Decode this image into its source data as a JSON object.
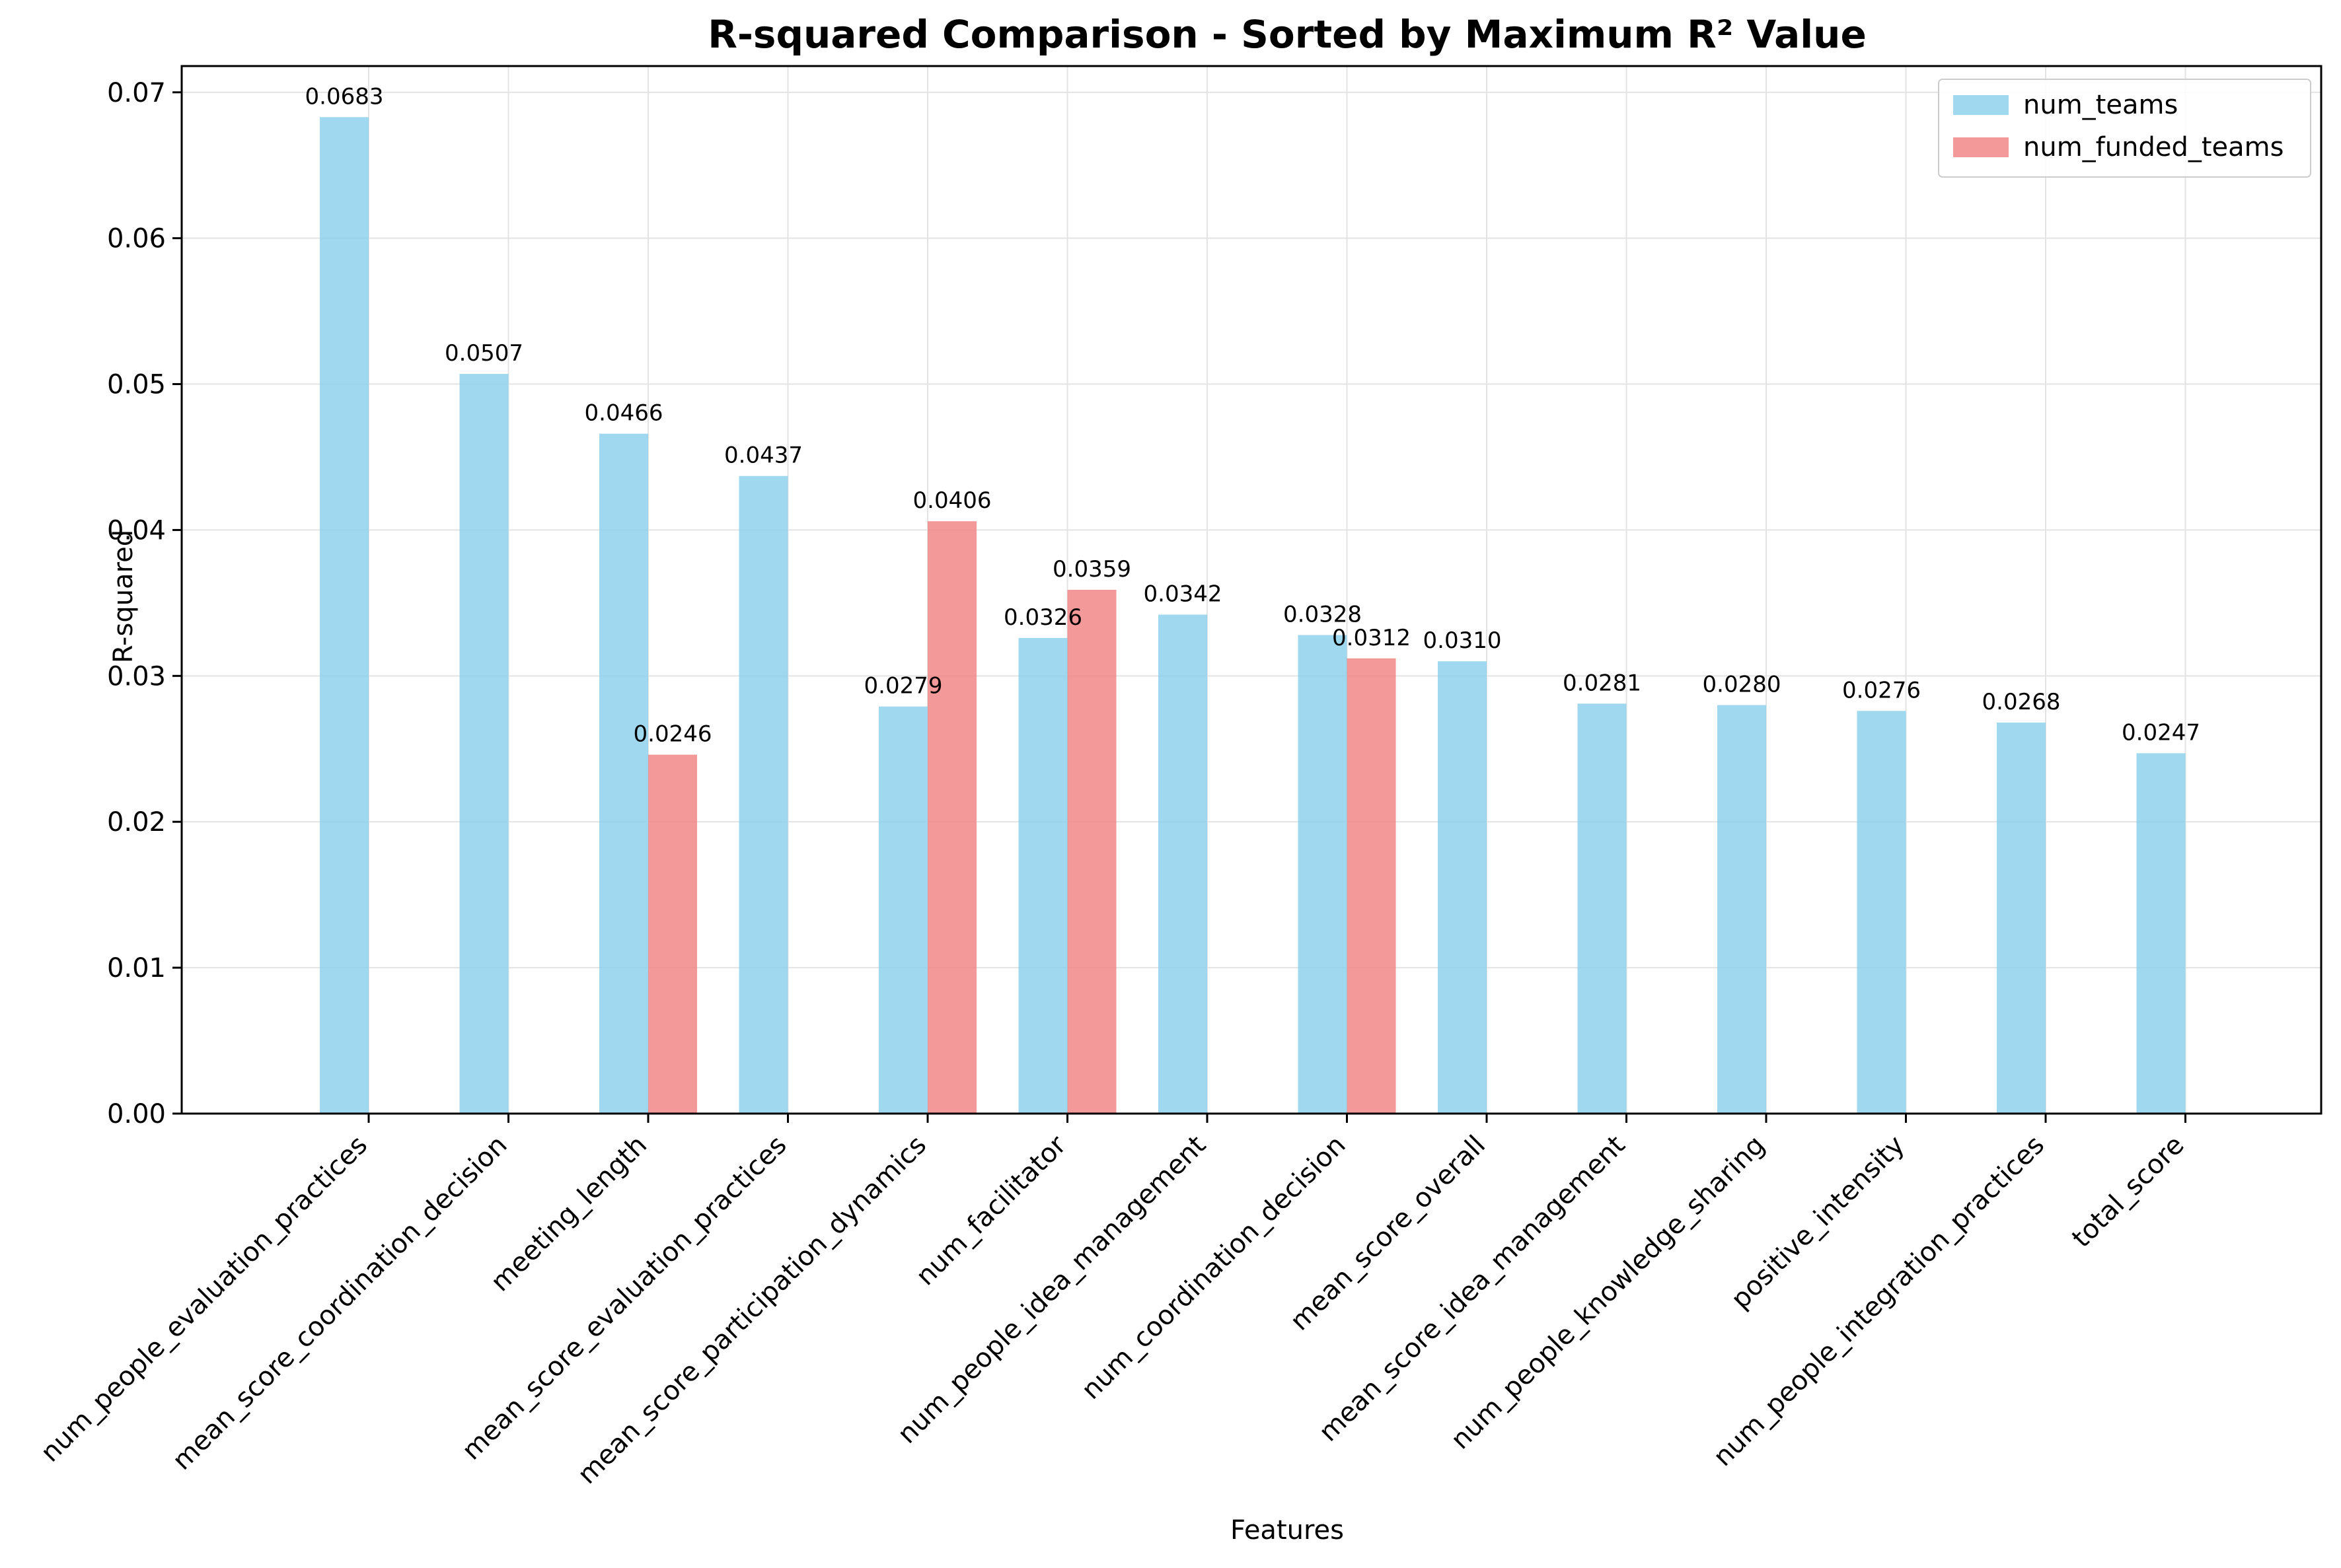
{
  "chart_data": {
    "type": "bar",
    "title": "R-squared Comparison - Sorted by Maximum R² Value",
    "xlabel": "Features",
    "ylabel": "R-squared",
    "ylim": [
      0,
      0.0718
    ],
    "yticks": [
      "0.00",
      "0.01",
      "0.02",
      "0.03",
      "0.04",
      "0.05",
      "0.06",
      "0.07"
    ],
    "grid": true,
    "legend_position": "top-right",
    "categories": [
      "num_people_evaluation_practices",
      "mean_score_coordination_decision",
      "meeting_length",
      "mean_score_evaluation_practices",
      "mean_score_participation_dynamics",
      "num_facilitator",
      "num_people_idea_management",
      "num_coordination_decision",
      "mean_score_overall",
      "mean_score_idea_management",
      "num_people_knowledge_sharing",
      "positive_intensity",
      "num_people_integration_practices",
      "total_score"
    ],
    "series": [
      {
        "name": "num_teams",
        "color": "#87ceeb",
        "values": [
          0.0683,
          0.0507,
          0.0466,
          0.0437,
          0.0279,
          0.0326,
          0.0342,
          0.0328,
          0.031,
          0.0281,
          0.028,
          0.0276,
          0.0268,
          0.0247
        ],
        "labels": [
          "0.0683",
          "0.0507",
          "0.0466",
          "0.0437",
          "0.0279",
          "0.0326",
          "0.0342",
          "0.0328",
          "0.0310",
          "0.0281",
          "0.0280",
          "0.0276",
          "0.0268",
          "0.0247"
        ]
      },
      {
        "name": "num_funded_teams",
        "color": "#f08080",
        "values": [
          null,
          null,
          0.0246,
          null,
          0.0406,
          0.0359,
          null,
          0.0312,
          null,
          null,
          null,
          null,
          null,
          null
        ],
        "labels": [
          null,
          null,
          "0.0246",
          null,
          "0.0406",
          "0.0359",
          null,
          "0.0312",
          null,
          null,
          null,
          null,
          null,
          null
        ]
      }
    ]
  }
}
